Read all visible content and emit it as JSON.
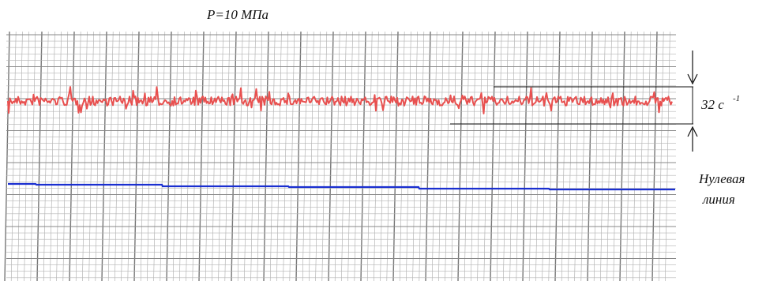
{
  "title": "P=10 МПа",
  "amplitude_label": {
    "text": "32 с",
    "exponent": "-1"
  },
  "zero_line_label": [
    "Нулевая",
    "линия"
  ]
}
